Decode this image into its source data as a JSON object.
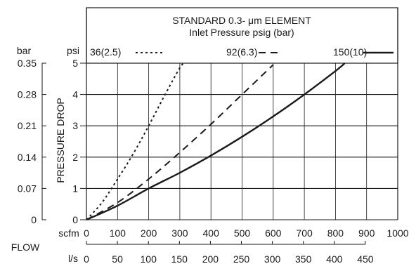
{
  "chart_data": {
    "type": "line",
    "title": "STANDARD 0.3- μm ELEMENT",
    "subtitle": "Inlet Pressure psig (bar)",
    "ylabel": "PRESSURE DROP",
    "xlabel": "FLOW",
    "y_unit_primary": "psi",
    "y_unit_secondary": "bar",
    "x_unit_primary": "scfm",
    "x_unit_secondary": "l/s",
    "ylim": [
      0,
      5
    ],
    "xlim": [
      0,
      1000
    ],
    "yticks_psi": [
      "0",
      "1",
      "2",
      "3",
      "4",
      "5"
    ],
    "yticks_bar": [
      "0",
      "0.07",
      "0.14",
      "0.21",
      "0.28",
      "0.35"
    ],
    "xticks_scfm": [
      "0",
      "100",
      "200",
      "300",
      "400",
      "500",
      "600",
      "700",
      "800",
      "900",
      "1000"
    ],
    "xticks_ls": [
      "0",
      "50",
      "100",
      "150",
      "200",
      "250",
      "300",
      "350",
      "400",
      "450"
    ],
    "grid": true,
    "legend_position": "top",
    "series": [
      {
        "name": "36(2.5)",
        "style": "dotted",
        "x": [
          0,
          50,
          100,
          150,
          200,
          250,
          300,
          315
        ],
        "y": [
          0,
          0.55,
          1.3,
          2.1,
          3.0,
          3.95,
          4.85,
          5.0
        ]
      },
      {
        "name": "92(6.3)",
        "style": "dashed",
        "x": [
          0,
          100,
          200,
          300,
          400,
          500,
          600
        ],
        "y": [
          0,
          0.55,
          1.3,
          2.15,
          3.05,
          4.0,
          4.95
        ]
      },
      {
        "name": "150(10)",
        "style": "solid",
        "x": [
          0,
          100,
          200,
          300,
          400,
          500,
          600,
          700,
          800,
          830
        ],
        "y": [
          0,
          0.45,
          1.0,
          1.5,
          2.05,
          2.65,
          3.3,
          4.0,
          4.75,
          5.0
        ]
      }
    ],
    "colors": {
      "line": "#1a1a1a",
      "grid": "#1a1a1a",
      "background": "#ffffff"
    }
  }
}
